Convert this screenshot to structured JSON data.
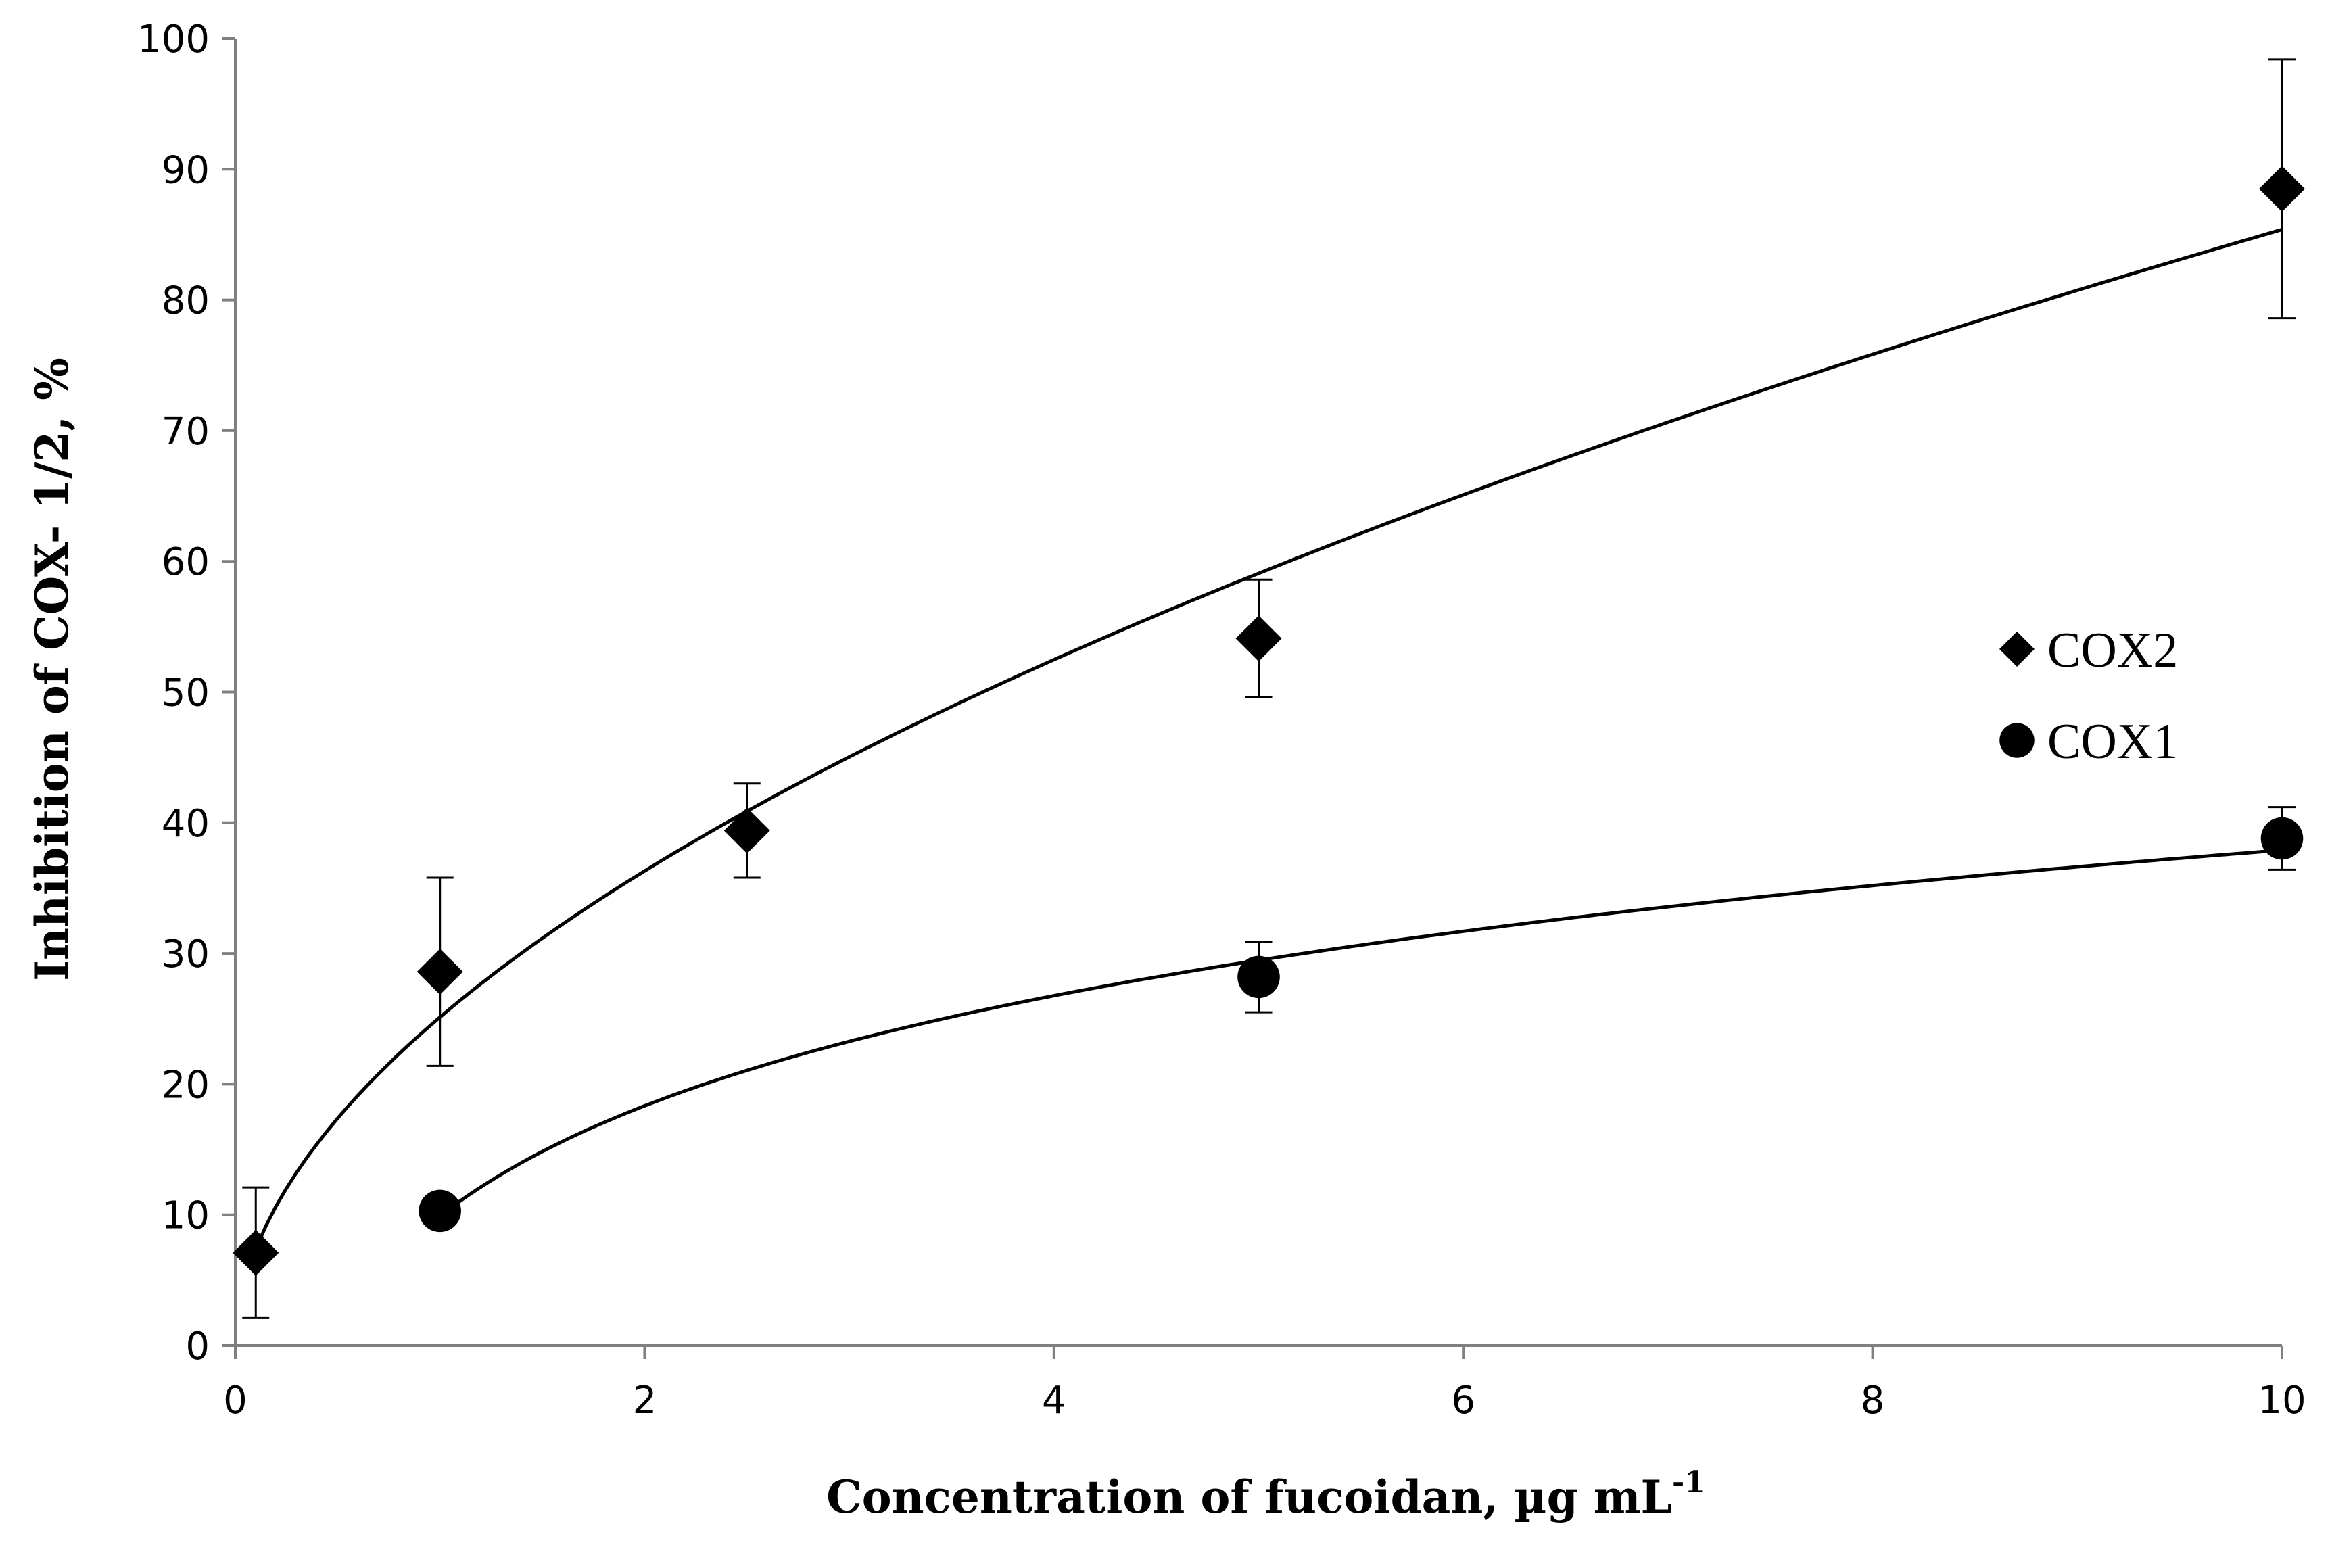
{
  "chart_data": {
    "type": "scatter",
    "title": "",
    "xlabel": "Concentration of fucoidan, µg mL",
    "xlabel_superscript": "-1",
    "ylabel": "Inhibition of COX- 1/2, %",
    "xlim": [
      0,
      10
    ],
    "ylim": [
      0,
      100
    ],
    "x_ticks": [
      "0",
      "2",
      "4",
      "6",
      "8",
      "10"
    ],
    "y_ticks": [
      "0",
      "10",
      "20",
      "30",
      "40",
      "50",
      "60",
      "70",
      "80",
      "90",
      "100"
    ],
    "grid": false,
    "legend_position": "right",
    "series": [
      {
        "name": "COX2",
        "marker": "diamond",
        "color": "#000000",
        "x": [
          0.1,
          1,
          2.5,
          5,
          10
        ],
        "y": [
          7.1,
          28.6,
          39.4,
          54.1,
          88.5
        ],
        "error": [
          5.0,
          7.2,
          3.6,
          4.5,
          9.9
        ],
        "trendline": "power"
      },
      {
        "name": "COX1",
        "marker": "circle",
        "color": "#000000",
        "x": [
          1,
          5,
          10
        ],
        "y": [
          10.3,
          28.2,
          38.8
        ],
        "error": [
          0,
          2.7,
          2.4
        ],
        "trendline": "logarithmic"
      }
    ]
  }
}
